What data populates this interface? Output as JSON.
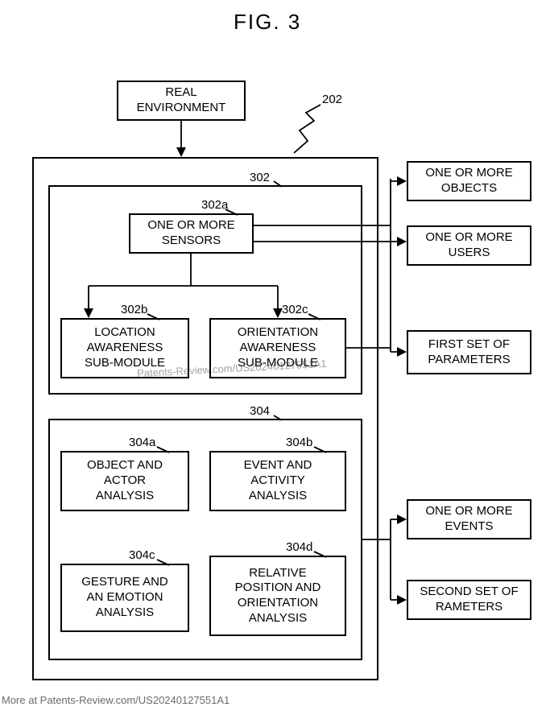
{
  "figure": {
    "title": "FIG. 3",
    "ref_main": "202"
  },
  "boxes": {
    "real_env": {
      "text": "REAL\nENVIRONMENT"
    },
    "sensors": {
      "text": "ONE OR MORE\nSENSORS",
      "ref": "302a"
    },
    "location": {
      "text": "LOCATION\nAWARENESS\nSUB-MODULE",
      "ref": "302b"
    },
    "orientation": {
      "text": "ORIENTATION\nAWARENESS\nSUB-MODULE",
      "ref": "302c"
    },
    "object_actor": {
      "text": "OBJECT AND\nACTOR\nANALYSIS",
      "ref": "304a"
    },
    "event_activity": {
      "text": "EVENT AND\nACTIVITY\nANALYSIS",
      "ref": "304b"
    },
    "gesture_emotion": {
      "text": "GESTURE AND\nAN EMOTION\nANALYSIS",
      "ref": "304c"
    },
    "rel_pos_orient": {
      "text": "RELATIVE\nPOSITION AND\nORIENTATION\nANALYSIS",
      "ref": "304d"
    },
    "objects_out": {
      "text": "ONE OR MORE\nOBJECTS"
    },
    "users_out": {
      "text": "ONE OR MORE\nUSERS"
    },
    "first_params": {
      "text": "FIRST SET OF\nPARAMETERS"
    },
    "events_out": {
      "text": "ONE OR MORE\nEVENTS"
    },
    "second_params": {
      "text": "SECOND SET OF\nRAMETERS"
    }
  },
  "frames": {
    "outer": {
      "ref": ""
    },
    "upper": {
      "ref": "302"
    },
    "lower": {
      "ref": "304"
    }
  },
  "watermark": "Patents-Review.com/US20240127551A1",
  "footer": "More at Patents-Review.com/US20240127551A1",
  "style": {
    "border_color": "#000000",
    "background": "#ffffff",
    "font_family": "Arial",
    "title_fontsize": 26,
    "box_fontsize": 15,
    "label_fontsize": 15
  }
}
